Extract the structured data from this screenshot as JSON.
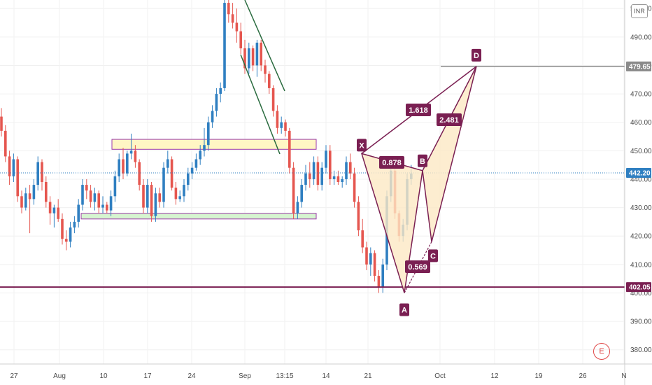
{
  "currency": "INR",
  "events_badge": "E",
  "chart_data": {
    "type": "candlestick",
    "x_tick_labels": [
      "27",
      "Aug",
      "10",
      "17",
      "24",
      "Sep",
      "13:15",
      "14",
      "21",
      "Oct",
      "12",
      "19",
      "26",
      "N"
    ],
    "y_ticks": [
      380,
      390,
      400,
      410,
      420,
      430,
      440,
      450,
      460,
      470,
      480,
      490,
      500
    ],
    "ylim": [
      375,
      503
    ],
    "last_price": 442.2,
    "price_lines": [
      {
        "value": 479.65,
        "color": "#8a8a8a"
      },
      {
        "value": 402.05,
        "color": "#7a1f52"
      }
    ],
    "zones": [
      {
        "name": "resistance-zone",
        "low": 450.5,
        "high": 454.0,
        "color": "#fff6c4"
      },
      {
        "name": "support-zone",
        "low": 426.0,
        "high": 428.0,
        "color": "#d6f5d0"
      }
    ],
    "harmonic_pattern": {
      "points": [
        {
          "label": "X",
          "value": 449
        },
        {
          "label": "A",
          "value": 400
        },
        {
          "label": "B",
          "value": 443
        },
        {
          "label": "C",
          "value": 418
        },
        {
          "label": "D",
          "value": 479.65
        }
      ],
      "ratios": [
        "0.878",
        "0.569",
        "1.618",
        "2.481"
      ]
    },
    "candles": [
      {
        "o": 462,
        "h": 465,
        "l": 455,
        "c": 457
      },
      {
        "o": 457,
        "h": 459,
        "l": 446,
        "c": 448
      },
      {
        "o": 448,
        "h": 450,
        "l": 438,
        "c": 441
      },
      {
        "o": 441,
        "h": 449,
        "l": 439,
        "c": 447
      },
      {
        "o": 447,
        "h": 448,
        "l": 432,
        "c": 434
      },
      {
        "o": 434,
        "h": 436,
        "l": 428,
        "c": 430
      },
      {
        "o": 430,
        "h": 437,
        "l": 429,
        "c": 435
      },
      {
        "o": 435,
        "h": 438,
        "l": 421,
        "c": 433
      },
      {
        "o": 433,
        "h": 440,
        "l": 431,
        "c": 438
      },
      {
        "o": 438,
        "h": 448,
        "l": 436,
        "c": 446
      },
      {
        "o": 446,
        "h": 447,
        "l": 436,
        "c": 439
      },
      {
        "o": 439,
        "h": 441,
        "l": 430,
        "c": 432
      },
      {
        "o": 432,
        "h": 434,
        "l": 424,
        "c": 428
      },
      {
        "o": 428,
        "h": 431,
        "l": 423,
        "c": 430
      },
      {
        "o": 430,
        "h": 433,
        "l": 425,
        "c": 426
      },
      {
        "o": 426,
        "h": 428,
        "l": 417,
        "c": 419
      },
      {
        "o": 419,
        "h": 422,
        "l": 415,
        "c": 418
      },
      {
        "o": 418,
        "h": 425,
        "l": 416,
        "c": 423
      },
      {
        "o": 423,
        "h": 427,
        "l": 421,
        "c": 425
      },
      {
        "o": 425,
        "h": 433,
        "l": 423,
        "c": 431
      },
      {
        "o": 431,
        "h": 440,
        "l": 429,
        "c": 438
      },
      {
        "o": 438,
        "h": 440,
        "l": 433,
        "c": 436
      },
      {
        "o": 436,
        "h": 438,
        "l": 430,
        "c": 432
      },
      {
        "o": 432,
        "h": 437,
        "l": 429,
        "c": 435
      },
      {
        "o": 435,
        "h": 436,
        "l": 428,
        "c": 430
      },
      {
        "o": 430,
        "h": 434,
        "l": 428,
        "c": 431
      },
      {
        "o": 431,
        "h": 432,
        "l": 428,
        "c": 429
      },
      {
        "o": 429,
        "h": 436,
        "l": 427,
        "c": 434
      },
      {
        "o": 434,
        "h": 443,
        "l": 432,
        "c": 441
      },
      {
        "o": 441,
        "h": 449,
        "l": 439,
        "c": 447
      },
      {
        "o": 447,
        "h": 451,
        "l": 440,
        "c": 442
      },
      {
        "o": 442,
        "h": 450,
        "l": 441,
        "c": 449
      },
      {
        "o": 449,
        "h": 456,
        "l": 447,
        "c": 450
      },
      {
        "o": 450,
        "h": 452,
        "l": 444,
        "c": 446
      },
      {
        "o": 446,
        "h": 447,
        "l": 436,
        "c": 438
      },
      {
        "o": 438,
        "h": 440,
        "l": 428,
        "c": 430
      },
      {
        "o": 430,
        "h": 440,
        "l": 428,
        "c": 438
      },
      {
        "o": 438,
        "h": 439,
        "l": 425,
        "c": 427
      },
      {
        "o": 427,
        "h": 437,
        "l": 425,
        "c": 435
      },
      {
        "o": 435,
        "h": 437,
        "l": 430,
        "c": 432
      },
      {
        "o": 432,
        "h": 446,
        "l": 430,
        "c": 444
      },
      {
        "o": 444,
        "h": 450,
        "l": 442,
        "c": 447
      },
      {
        "o": 447,
        "h": 448,
        "l": 436,
        "c": 437
      },
      {
        "o": 437,
        "h": 439,
        "l": 431,
        "c": 433
      },
      {
        "o": 433,
        "h": 436,
        "l": 432,
        "c": 434
      },
      {
        "o": 434,
        "h": 440,
        "l": 432,
        "c": 438
      },
      {
        "o": 438,
        "h": 444,
        "l": 436,
        "c": 442
      },
      {
        "o": 442,
        "h": 446,
        "l": 440,
        "c": 444
      },
      {
        "o": 444,
        "h": 449,
        "l": 443,
        "c": 447
      },
      {
        "o": 447,
        "h": 452,
        "l": 445,
        "c": 450
      },
      {
        "o": 450,
        "h": 458,
        "l": 448,
        "c": 452
      },
      {
        "o": 452,
        "h": 462,
        "l": 450,
        "c": 460
      },
      {
        "o": 460,
        "h": 466,
        "l": 458,
        "c": 464
      },
      {
        "o": 464,
        "h": 472,
        "l": 462,
        "c": 470
      },
      {
        "o": 470,
        "h": 474,
        "l": 467,
        "c": 472
      },
      {
        "o": 472,
        "h": 503,
        "l": 471,
        "c": 502
      },
      {
        "o": 502,
        "h": 504,
        "l": 495,
        "c": 498
      },
      {
        "o": 498,
        "h": 502,
        "l": 493,
        "c": 495
      },
      {
        "o": 495,
        "h": 500,
        "l": 488,
        "c": 492
      },
      {
        "o": 492,
        "h": 495,
        "l": 484,
        "c": 486
      },
      {
        "o": 486,
        "h": 489,
        "l": 477,
        "c": 479
      },
      {
        "o": 479,
        "h": 488,
        "l": 477,
        "c": 486
      },
      {
        "o": 486,
        "h": 487,
        "l": 478,
        "c": 480
      },
      {
        "o": 480,
        "h": 489,
        "l": 476,
        "c": 488
      },
      {
        "o": 488,
        "h": 489,
        "l": 478,
        "c": 480
      },
      {
        "o": 480,
        "h": 482,
        "l": 474,
        "c": 477
      },
      {
        "o": 477,
        "h": 478,
        "l": 470,
        "c": 472
      },
      {
        "o": 472,
        "h": 473,
        "l": 462,
        "c": 464
      },
      {
        "o": 464,
        "h": 466,
        "l": 456,
        "c": 458
      },
      {
        "o": 458,
        "h": 462,
        "l": 456,
        "c": 460
      },
      {
        "o": 460,
        "h": 461,
        "l": 455,
        "c": 457
      },
      {
        "o": 457,
        "h": 458,
        "l": 442,
        "c": 444
      },
      {
        "o": 444,
        "h": 446,
        "l": 426,
        "c": 428
      },
      {
        "o": 428,
        "h": 434,
        "l": 426,
        "c": 432
      },
      {
        "o": 432,
        "h": 440,
        "l": 430,
        "c": 438
      },
      {
        "o": 438,
        "h": 445,
        "l": 436,
        "c": 442
      },
      {
        "o": 442,
        "h": 446,
        "l": 437,
        "c": 440
      },
      {
        "o": 440,
        "h": 448,
        "l": 438,
        "c": 446
      },
      {
        "o": 446,
        "h": 448,
        "l": 436,
        "c": 438
      },
      {
        "o": 438,
        "h": 446,
        "l": 436,
        "c": 444
      },
      {
        "o": 444,
        "h": 452,
        "l": 442,
        "c": 450
      },
      {
        "o": 450,
        "h": 452,
        "l": 438,
        "c": 440
      },
      {
        "o": 440,
        "h": 443,
        "l": 438,
        "c": 441
      },
      {
        "o": 441,
        "h": 443,
        "l": 438,
        "c": 439
      },
      {
        "o": 439,
        "h": 441,
        "l": 437,
        "c": 440
      },
      {
        "o": 440,
        "h": 448,
        "l": 438,
        "c": 446
      },
      {
        "o": 446,
        "h": 449,
        "l": 440,
        "c": 442
      },
      {
        "o": 442,
        "h": 444,
        "l": 430,
        "c": 432
      },
      {
        "o": 432,
        "h": 434,
        "l": 420,
        "c": 422
      },
      {
        "o": 422,
        "h": 426,
        "l": 414,
        "c": 416
      },
      {
        "o": 416,
        "h": 418,
        "l": 408,
        "c": 410
      },
      {
        "o": 410,
        "h": 416,
        "l": 406,
        "c": 414
      },
      {
        "o": 414,
        "h": 415,
        "l": 404,
        "c": 406
      },
      {
        "o": 406,
        "h": 408,
        "l": 400,
        "c": 402
      },
      {
        "o": 402,
        "h": 412,
        "l": 400,
        "c": 410
      },
      {
        "o": 410,
        "h": 436,
        "l": 408,
        "c": 434
      },
      {
        "o": 434,
        "h": 445,
        "l": 432,
        "c": 443
      },
      {
        "o": 443,
        "h": 444,
        "l": 426,
        "c": 428
      },
      {
        "o": 428,
        "h": 429,
        "l": 418,
        "c": 420
      },
      {
        "o": 420,
        "h": 426,
        "l": 418,
        "c": 424
      },
      {
        "o": 424,
        "h": 442,
        "l": 422,
        "c": 440
      },
      {
        "o": 440,
        "h": 445,
        "l": 438,
        "c": 442
      }
    ]
  }
}
